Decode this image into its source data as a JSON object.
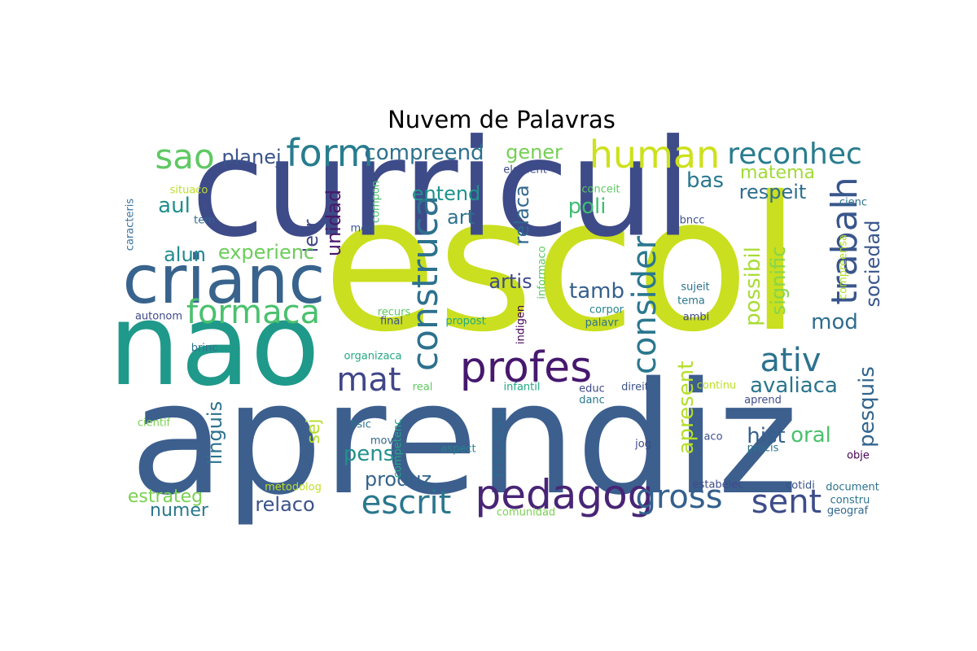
{
  "title": "Nuvem de Palavras",
  "words": [
    {
      "text": "escol",
      "color": "#cadf1f",
      "rot": 0
    },
    {
      "text": "aprendiz",
      "color": "#3c5f8e",
      "rot": 0
    },
    {
      "text": "curricul",
      "color": "#3e4b89",
      "rot": 0
    },
    {
      "text": "nao",
      "color": "#1f998a",
      "rot": 0
    },
    {
      "text": "crianc",
      "color": "#38638d",
      "rot": 0
    },
    {
      "text": "profes",
      "color": "#46186e",
      "rot": 0
    },
    {
      "text": "pedagog",
      "color": "#482576",
      "rot": 0
    },
    {
      "text": "human",
      "color": "#cde11d",
      "rot": 0
    },
    {
      "text": "form",
      "color": "#287d8e",
      "rot": 0
    },
    {
      "text": "reconhec",
      "color": "#287c8e",
      "rot": 0
    },
    {
      "text": "sao",
      "color": "#5ec962",
      "rot": 0
    },
    {
      "text": "formaca",
      "color": "#4ac16d",
      "rot": 0
    },
    {
      "text": "construca",
      "color": "#2d718e",
      "rot": 90
    },
    {
      "text": "escrit",
      "color": "#2a768e",
      "rot": 0
    },
    {
      "text": "gross",
      "color": "#34608d",
      "rot": 0
    },
    {
      "text": "sent",
      "color": "#3d4d8a",
      "rot": 0
    },
    {
      "text": "ativ",
      "color": "#2c728e",
      "rot": 0
    },
    {
      "text": "trabalh",
      "color": "#39568c",
      "rot": 90
    },
    {
      "text": "consider",
      "color": "#2a778e",
      "rot": 90
    },
    {
      "text": "mat",
      "color": "#404688",
      "rot": 0
    },
    {
      "text": "compreend",
      "color": "#2d708e",
      "rot": 0
    },
    {
      "text": "planej",
      "color": "#3a548c",
      "rot": 0
    },
    {
      "text": "gener",
      "color": "#75d054",
      "rot": 0
    },
    {
      "text": "matema",
      "color": "#a2da37",
      "rot": 0
    },
    {
      "text": "bas",
      "color": "#2a788e",
      "rot": 0
    },
    {
      "text": "respeit",
      "color": "#2e6e8e",
      "rot": 0
    },
    {
      "text": "entend",
      "color": "#20928c",
      "rot": 0
    },
    {
      "text": "relaca",
      "color": "#31688e",
      "rot": 90
    },
    {
      "text": "art",
      "color": "#2c728e",
      "rot": 0
    },
    {
      "text": "poli",
      "color": "#3fbc73",
      "rot": 0
    },
    {
      "text": "aul",
      "color": "#218f8d",
      "rot": 0
    },
    {
      "text": "letr",
      "color": "#3f4788",
      "rot": 90
    },
    {
      "text": "unidad",
      "color": "#48186a",
      "rot": 90
    },
    {
      "text": "alun",
      "color": "#23898e",
      "rot": 0
    },
    {
      "text": "experienc",
      "color": "#6ccd5a",
      "rot": 0
    },
    {
      "text": "artis",
      "color": "#3e4a89",
      "rot": 0
    },
    {
      "text": "tamb",
      "color": "#355f8d",
      "rot": 0
    },
    {
      "text": "possibil",
      "color": "#a8db34",
      "rot": 90
    },
    {
      "text": "signific",
      "color": "#87d549",
      "rot": 90
    },
    {
      "text": "sociedad",
      "color": "#39568c",
      "rot": 90
    },
    {
      "text": "mod",
      "color": "#2f6c8e",
      "rot": 0
    },
    {
      "text": "avaliaca",
      "color": "#2b758e",
      "rot": 0
    },
    {
      "text": "apresent",
      "color": "#b5de2b",
      "rot": 90
    },
    {
      "text": "pesquis",
      "color": "#32658e",
      "rot": 90
    },
    {
      "text": "hist",
      "color": "#355f8d",
      "rot": 0
    },
    {
      "text": "oral",
      "color": "#4ac16d",
      "rot": 0
    },
    {
      "text": "linguis",
      "color": "#2c728e",
      "rot": 90
    },
    {
      "text": "sej",
      "color": "#b5de2b",
      "rot": 90
    },
    {
      "text": "necess",
      "color": "#31688e",
      "rot": 90
    },
    {
      "text": "pens",
      "color": "#21918c",
      "rot": 0
    },
    {
      "text": "produz",
      "color": "#33638d",
      "rot": 0
    },
    {
      "text": "estrateg",
      "color": "#7ad151",
      "rot": 0
    },
    {
      "text": "numer",
      "color": "#2a788e",
      "rot": 0
    },
    {
      "text": "relaco",
      "color": "#3b528b",
      "rot": 0
    },
    {
      "text": "situaco",
      "color": "#bddf26",
      "rot": 0
    },
    {
      "text": "tem",
      "color": "#31688e",
      "rot": 0
    },
    {
      "text": "caracteris",
      "color": "#3e74a0",
      "rot": 90
    },
    {
      "text": "med",
      "color": "#39568c",
      "rot": 0
    },
    {
      "text": "compon",
      "color": "#4ac16d",
      "rot": 90
    },
    {
      "text": "element",
      "color": "#3e4a89",
      "rot": 0
    },
    {
      "text": "conceit",
      "color": "#5ec962",
      "rot": 0
    },
    {
      "text": "cienc",
      "color": "#2c728e",
      "rot": 0
    },
    {
      "text": "bncc",
      "color": "#3b528b",
      "rot": 0
    },
    {
      "text": "compreensa",
      "color": "#b5de2b",
      "rot": 90
    },
    {
      "text": "sujeit",
      "color": "#2c728e",
      "rot": 0
    },
    {
      "text": "tema",
      "color": "#2a768e",
      "rot": 0
    },
    {
      "text": "ambi",
      "color": "#3e4a89",
      "rot": 0
    },
    {
      "text": "informaco",
      "color": "#5ec962",
      "rot": 90
    },
    {
      "text": "indigen",
      "color": "#440154",
      "rot": 90
    },
    {
      "text": "corpor",
      "color": "#26828e",
      "rot": 0
    },
    {
      "text": "palavr",
      "color": "#2c728e",
      "rot": 0
    },
    {
      "text": "autonom",
      "color": "#3e4a89",
      "rot": 0
    },
    {
      "text": "recurs",
      "color": "#5ec962",
      "rot": 0
    },
    {
      "text": "propost",
      "color": "#22a884",
      "rot": 0
    },
    {
      "text": "final",
      "color": "#3b528b",
      "rot": 0
    },
    {
      "text": "brinc",
      "color": "#2c728e",
      "rot": 0
    },
    {
      "text": "organizaca",
      "color": "#22a884",
      "rot": 0
    },
    {
      "text": "real",
      "color": "#5ec962",
      "rot": 0
    },
    {
      "text": "infantil",
      "color": "#22a884",
      "rot": 0
    },
    {
      "text": "educ",
      "color": "#3e4a89",
      "rot": 0
    },
    {
      "text": "direit",
      "color": "#3b528b",
      "rot": 0
    },
    {
      "text": "continu",
      "color": "#bddf26",
      "rot": 0
    },
    {
      "text": "danc",
      "color": "#2a788e",
      "rot": 0
    },
    {
      "text": "aprend",
      "color": "#3e4a89",
      "rot": 0
    },
    {
      "text": "cientif",
      "color": "#7ad151",
      "rot": 0
    },
    {
      "text": "fisic",
      "color": "#2c728e",
      "rot": 0
    },
    {
      "text": "competenc",
      "color": "#22a884",
      "rot": 90
    },
    {
      "text": "mov",
      "color": "#31688e",
      "rot": 0
    },
    {
      "text": "aspect",
      "color": "#26828e",
      "rot": 0
    },
    {
      "text": "jog",
      "color": "#3e4a89",
      "rot": 0
    },
    {
      "text": "aco",
      "color": "#3b528b",
      "rot": 0
    },
    {
      "text": "precis",
      "color": "#2c728e",
      "rot": 0
    },
    {
      "text": "obje",
      "color": "#440154",
      "rot": 0
    },
    {
      "text": "metodolog",
      "color": "#bddf26",
      "rot": 0
    },
    {
      "text": "estabelec",
      "color": "#3e4a89",
      "rot": 0
    },
    {
      "text": "cotidi",
      "color": "#3b528b",
      "rot": 0
    },
    {
      "text": "document",
      "color": "#2c728e",
      "rot": 0
    },
    {
      "text": "constru",
      "color": "#2c728e",
      "rot": 0
    },
    {
      "text": "comunidad",
      "color": "#7ad151",
      "rot": 0
    },
    {
      "text": "geograf",
      "color": "#31688e",
      "rot": 0
    }
  ]
}
